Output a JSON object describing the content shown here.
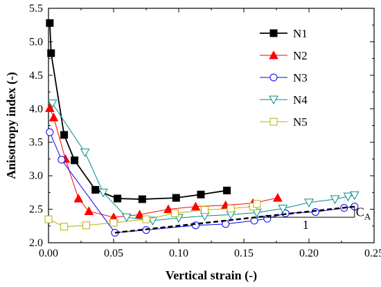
{
  "chart_data": {
    "type": "line",
    "xlabel": "Vertical strain (-)",
    "ylabel": "Anisotropy index (-)",
    "xlim": [
      0.0,
      0.25
    ],
    "ylim": [
      2.0,
      5.5
    ],
    "xticks": [
      "0.00",
      "0.05",
      "0.10",
      "0.15",
      "0.20",
      "0.25"
    ],
    "yticks": [
      "2.0",
      "2.5",
      "3.0",
      "3.5",
      "4.0",
      "4.5",
      "5.0",
      "5.5"
    ],
    "legend_position": "upper-right",
    "series": [
      {
        "name": "N1",
        "color": "#000000",
        "marker": "filled-square",
        "x": [
          0.001,
          0.002,
          0.012,
          0.02,
          0.036,
          0.053,
          0.072,
          0.098,
          0.117,
          0.137
        ],
        "y": [
          5.28,
          4.83,
          3.61,
          3.23,
          2.79,
          2.66,
          2.65,
          2.67,
          2.72,
          2.78
        ]
      },
      {
        "name": "N2",
        "color": "#ff0000",
        "marker": "filled-triangle",
        "x": [
          0.001,
          0.004,
          0.013,
          0.023,
          0.031,
          0.05,
          0.07,
          0.092,
          0.113,
          0.136,
          0.157,
          0.176
        ],
        "y": [
          4.01,
          3.87,
          3.25,
          2.66,
          2.47,
          2.38,
          2.42,
          2.5,
          2.54,
          2.56,
          2.59,
          2.67
        ]
      },
      {
        "name": "N3",
        "color": "#0000ff",
        "marker": "open-circle",
        "x": [
          0.001,
          0.01,
          0.051,
          0.075,
          0.113,
          0.136,
          0.158,
          0.168,
          0.182,
          0.205,
          0.227,
          0.235
        ],
        "y": [
          3.65,
          3.24,
          2.15,
          2.19,
          2.26,
          2.28,
          2.33,
          2.36,
          2.44,
          2.46,
          2.52,
          2.54
        ]
      },
      {
        "name": "N4",
        "color": "#008b8b",
        "marker": "open-inverted-triangle",
        "x": [
          0.003,
          0.028,
          0.042,
          0.06,
          0.08,
          0.1,
          0.12,
          0.14,
          0.16,
          0.18,
          0.2,
          0.22,
          0.23,
          0.235
        ],
        "y": [
          4.08,
          3.35,
          2.75,
          2.38,
          2.33,
          2.37,
          2.4,
          2.42,
          2.45,
          2.51,
          2.6,
          2.65,
          2.69,
          2.71
        ]
      },
      {
        "name": "N5",
        "color": "#b5b000",
        "marker": "open-square",
        "x": [
          0.0,
          0.012,
          0.029,
          0.05,
          0.075,
          0.097,
          0.12,
          0.14,
          0.157,
          0.16
        ],
        "y": [
          2.35,
          2.24,
          2.26,
          2.3,
          2.35,
          2.44,
          2.49,
          2.51,
          2.54,
          2.58
        ]
      }
    ],
    "annotations": {
      "trend_line": {
        "x": [
          0.051,
          0.235
        ],
        "y": [
          2.15,
          2.54
        ]
      },
      "slope_run_label": "1",
      "slope_rise_label_main": "C",
      "slope_rise_label_sub": "A"
    }
  }
}
